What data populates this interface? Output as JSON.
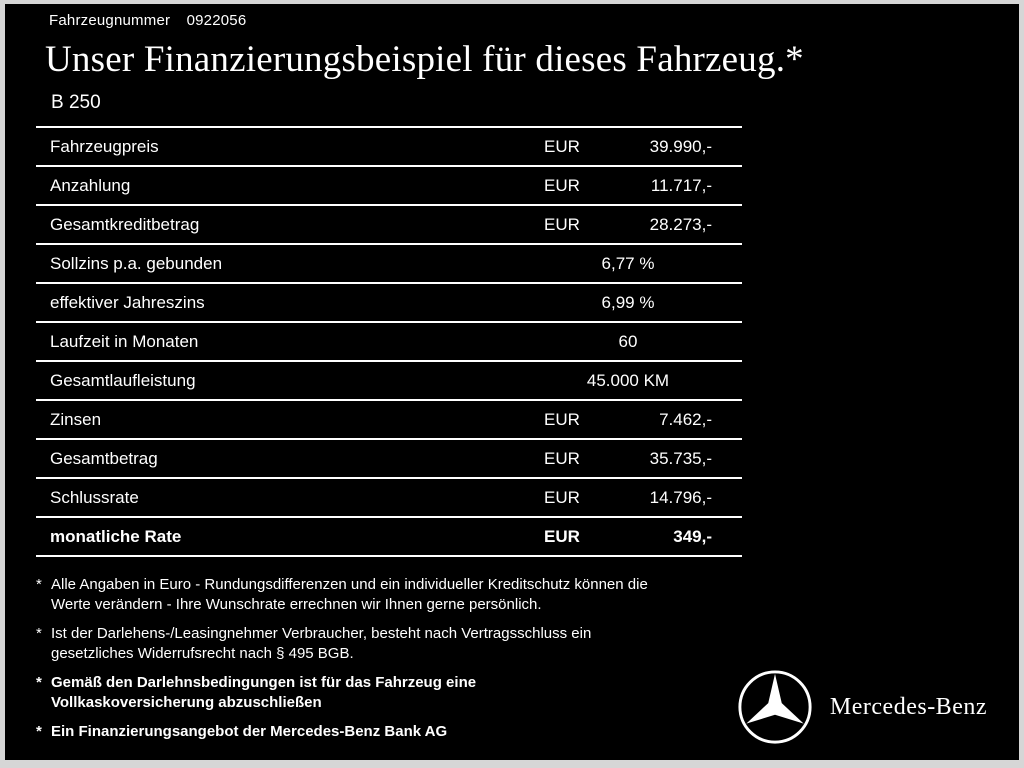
{
  "header": {
    "vehicle_number_label": "Fahrzeugnummer",
    "vehicle_number": "0922056",
    "title": "Unser Finanzierungsbeispiel für dieses Fahrzeug.*",
    "model": "B 250"
  },
  "table": {
    "rows": [
      {
        "label": "Fahrzeugpreis",
        "currency": "EUR",
        "amount": "39.990,-",
        "bold": false
      },
      {
        "label": "Anzahlung",
        "currency": "EUR",
        "amount": "11.717,-",
        "bold": false
      },
      {
        "label": "Gesamtkreditbetrag",
        "currency": "EUR",
        "amount": "28.273,-",
        "bold": false
      },
      {
        "label": "Sollzins p.a. gebunden",
        "currency": "",
        "amount": "6,77 %",
        "bold": false
      },
      {
        "label": "effektiver Jahreszins",
        "currency": "",
        "amount": "6,99 %",
        "bold": false
      },
      {
        "label": "Laufzeit in Monaten",
        "currency": "",
        "amount": "60",
        "bold": false
      },
      {
        "label": "Gesamtlaufleistung",
        "currency": "",
        "amount": "45.000 KM",
        "bold": false
      },
      {
        "label": "Zinsen",
        "currency": "EUR",
        "amount": "7.462,-",
        "bold": false
      },
      {
        "label": "Gesamtbetrag",
        "currency": "EUR",
        "amount": "35.735,-",
        "bold": false
      },
      {
        "label": "Schlussrate",
        "currency": "EUR",
        "amount": "14.796,-",
        "bold": false
      },
      {
        "label": "monatliche Rate",
        "currency": "EUR",
        "amount": "349,-",
        "bold": true
      }
    ]
  },
  "footnotes": [
    {
      "marker": "*",
      "bold": false,
      "text": "Alle Angaben in Euro - Rundungsdifferenzen und ein individueller Kreditschutz können die\nWerte verändern - Ihre Wunschrate errechnen wir Ihnen gerne persönlich."
    },
    {
      "marker": "*",
      "bold": false,
      "text": "Ist der Darlehens-/Leasingnehmer Verbraucher, besteht nach Vertragsschluss ein\ngesetzliches Widerrufsrecht nach § 495 BGB."
    },
    {
      "marker": "*",
      "bold": true,
      "text": "Gemäß den Darlehnsbedingungen ist für das Fahrzeug eine\nVollkaskoversicherung abzuschließen"
    },
    {
      "marker": "*",
      "bold": true,
      "text": "Ein Finanzierungsangebot der Mercedes-Benz Bank AG"
    }
  ],
  "brand": {
    "logo": "mercedes-star-logo",
    "name": "Mercedes-Benz"
  },
  "colors": {
    "background": "#000000",
    "text": "#ffffff",
    "frame": "#d6d6d6"
  }
}
